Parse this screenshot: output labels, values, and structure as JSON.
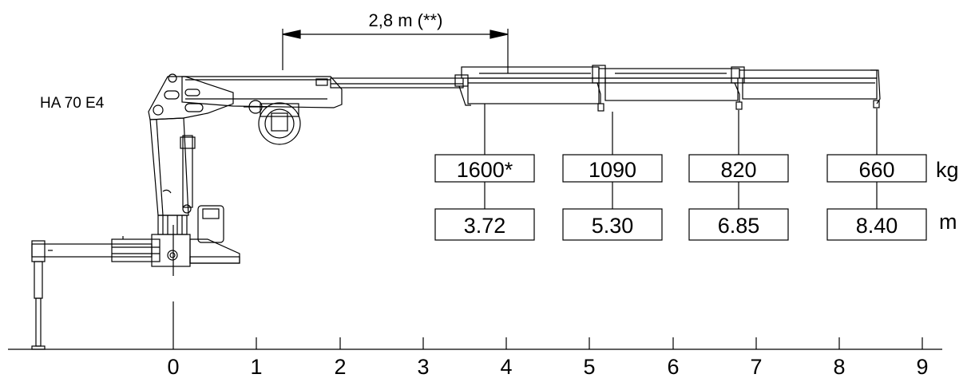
{
  "model_label": "HA 70 E4",
  "extension_dimension": "2,8 m (**)",
  "load_unit": "kg",
  "reach_unit": "m",
  "capacity_points": [
    {
      "load": "1600*",
      "reach": "3.72"
    },
    {
      "load": "1090",
      "reach": "5.30"
    },
    {
      "load": "820",
      "reach": "6.85"
    },
    {
      "load": "660",
      "reach": "8.40"
    }
  ],
  "axis_ticks": [
    "0",
    "1",
    "2",
    "3",
    "4",
    "5",
    "6",
    "7",
    "8",
    "9"
  ]
}
